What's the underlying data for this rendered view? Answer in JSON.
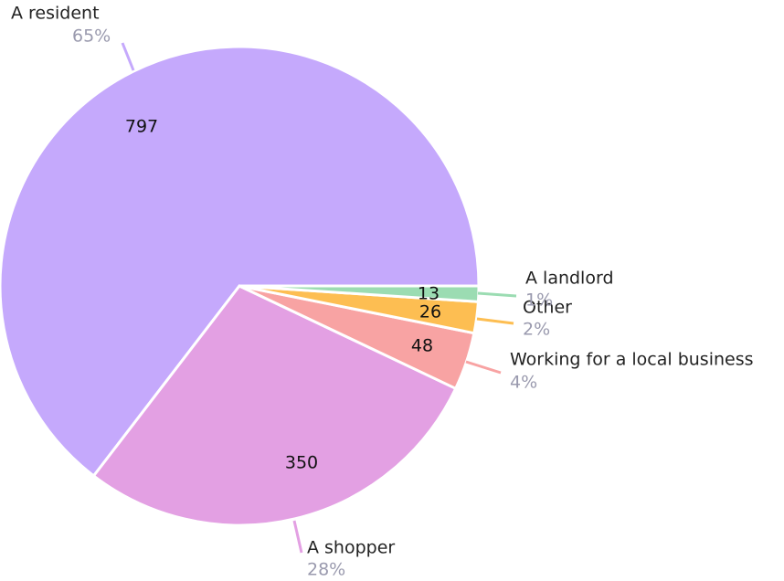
{
  "chart_data": {
    "type": "pie",
    "categories": [
      "A resident",
      "A shopper",
      "Working for a local business",
      "Other",
      "A landlord"
    ],
    "values": [
      797,
      350,
      48,
      26,
      13
    ],
    "percent_labels": [
      "65%",
      "28%",
      "4%",
      "2%",
      "1%"
    ],
    "colors": [
      "#c5a9fc",
      "#e3a0e3",
      "#f8a3a3",
      "#fdbe52",
      "#9bdcb2"
    ]
  }
}
